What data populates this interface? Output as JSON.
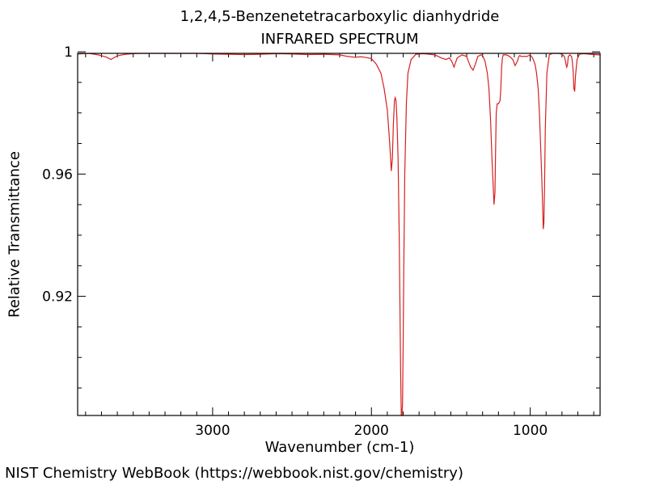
{
  "chart_data": {
    "type": "line",
    "title": "1,2,4,5-Benzenetetracarboxylic dianhydride",
    "subtitle": "INFRARED SPECTRUM",
    "xlabel": "Wavenumber (cm-1)",
    "ylabel": "Relative Transmittance",
    "xlim": [
      3850,
      560
    ],
    "ylim": [
      0.881,
      0.9995
    ],
    "x_reversed": true,
    "grid": false,
    "line_color": "#d62020",
    "x_ticks": [
      {
        "value": 3000,
        "label": "3000"
      },
      {
        "value": 2000,
        "label": "2000"
      },
      {
        "value": 1000,
        "label": "1000"
      }
    ],
    "y_ticks": [
      {
        "value": 1.0,
        "label": "1"
      },
      {
        "value": 0.96,
        "label": "0.96"
      },
      {
        "value": 0.92,
        "label": "0.92"
      }
    ],
    "series": [
      {
        "x": [
          3850,
          3780,
          3720,
          3670,
          3640,
          3600,
          3550,
          3500,
          3450,
          3400,
          3300,
          3200,
          3100,
          3000,
          2900,
          2800,
          2700,
          2600,
          2500,
          2400,
          2300,
          2250,
          2200,
          2150,
          2100,
          2070,
          2040,
          2000,
          1970,
          1940,
          1920,
          1900,
          1890,
          1880,
          1875,
          1868,
          1862,
          1855,
          1850,
          1845,
          1840,
          1832,
          1825,
          1820,
          1816,
          1812,
          1808,
          1804,
          1800,
          1796,
          1790,
          1780,
          1770,
          1750,
          1720,
          1680,
          1650,
          1600,
          1560,
          1530,
          1510,
          1495,
          1480,
          1460,
          1430,
          1400,
          1390,
          1375,
          1360,
          1345,
          1330,
          1310,
          1300,
          1285,
          1270,
          1260,
          1250,
          1240,
          1228,
          1222,
          1218,
          1214,
          1208,
          1200,
          1190,
          1185,
          1180,
          1175,
          1170,
          1150,
          1130,
          1110,
          1095,
          1080,
          1072,
          1065,
          1058,
          1050,
          1040,
          1020,
          1000,
          985,
          970,
          960,
          950,
          942,
          935,
          928,
          922,
          918,
          914,
          910,
          905,
          895,
          880,
          860,
          840,
          820,
          805,
          795,
          785,
          780,
          775,
          770,
          765,
          760,
          750,
          740,
          735,
          730,
          725,
          720,
          715,
          705,
          690,
          670,
          640,
          600,
          560
        ],
        "y": [
          0.9993,
          0.9995,
          0.999,
          0.9983,
          0.9975,
          0.9987,
          0.9992,
          0.9994,
          0.9995,
          0.9996,
          0.9996,
          0.9996,
          0.9995,
          0.9993,
          0.9992,
          0.9991,
          0.9992,
          0.9994,
          0.9993,
          0.9991,
          0.9992,
          0.9991,
          0.999,
          0.9985,
          0.9982,
          0.9984,
          0.9982,
          0.9978,
          0.996,
          0.993,
          0.988,
          0.981,
          0.974,
          0.966,
          0.961,
          0.965,
          0.976,
          0.984,
          0.985,
          0.984,
          0.979,
          0.965,
          0.94,
          0.915,
          0.895,
          0.88,
          0.875,
          0.885,
          0.905,
          0.93,
          0.96,
          0.983,
          0.993,
          0.9975,
          0.9992,
          0.9994,
          0.9993,
          0.999,
          0.998,
          0.9975,
          0.998,
          0.997,
          0.995,
          0.998,
          0.999,
          0.9985,
          0.997,
          0.995,
          0.994,
          0.996,
          0.9985,
          0.999,
          0.9988,
          0.997,
          0.993,
          0.988,
          0.978,
          0.964,
          0.95,
          0.954,
          0.968,
          0.98,
          0.983,
          0.983,
          0.984,
          0.988,
          0.995,
          0.998,
          0.999,
          0.999,
          0.9985,
          0.9975,
          0.9955,
          0.997,
          0.9985,
          0.9988,
          0.9985,
          0.9985,
          0.9985,
          0.9985,
          0.999,
          0.998,
          0.996,
          0.993,
          0.988,
          0.98,
          0.97,
          0.96,
          0.95,
          0.942,
          0.944,
          0.955,
          0.975,
          0.993,
          0.999,
          0.9995,
          0.9995,
          0.9995,
          0.9993,
          0.999,
          0.9985,
          0.9975,
          0.996,
          0.995,
          0.996,
          0.9985,
          0.999,
          0.9985,
          0.997,
          0.994,
          0.988,
          0.987,
          0.992,
          0.9975,
          0.9992,
          0.9994,
          0.9993,
          0.9991,
          0.999
        ]
      }
    ]
  },
  "footer": "NIST Chemistry WebBook (https://webbook.nist.gov/chemistry)"
}
